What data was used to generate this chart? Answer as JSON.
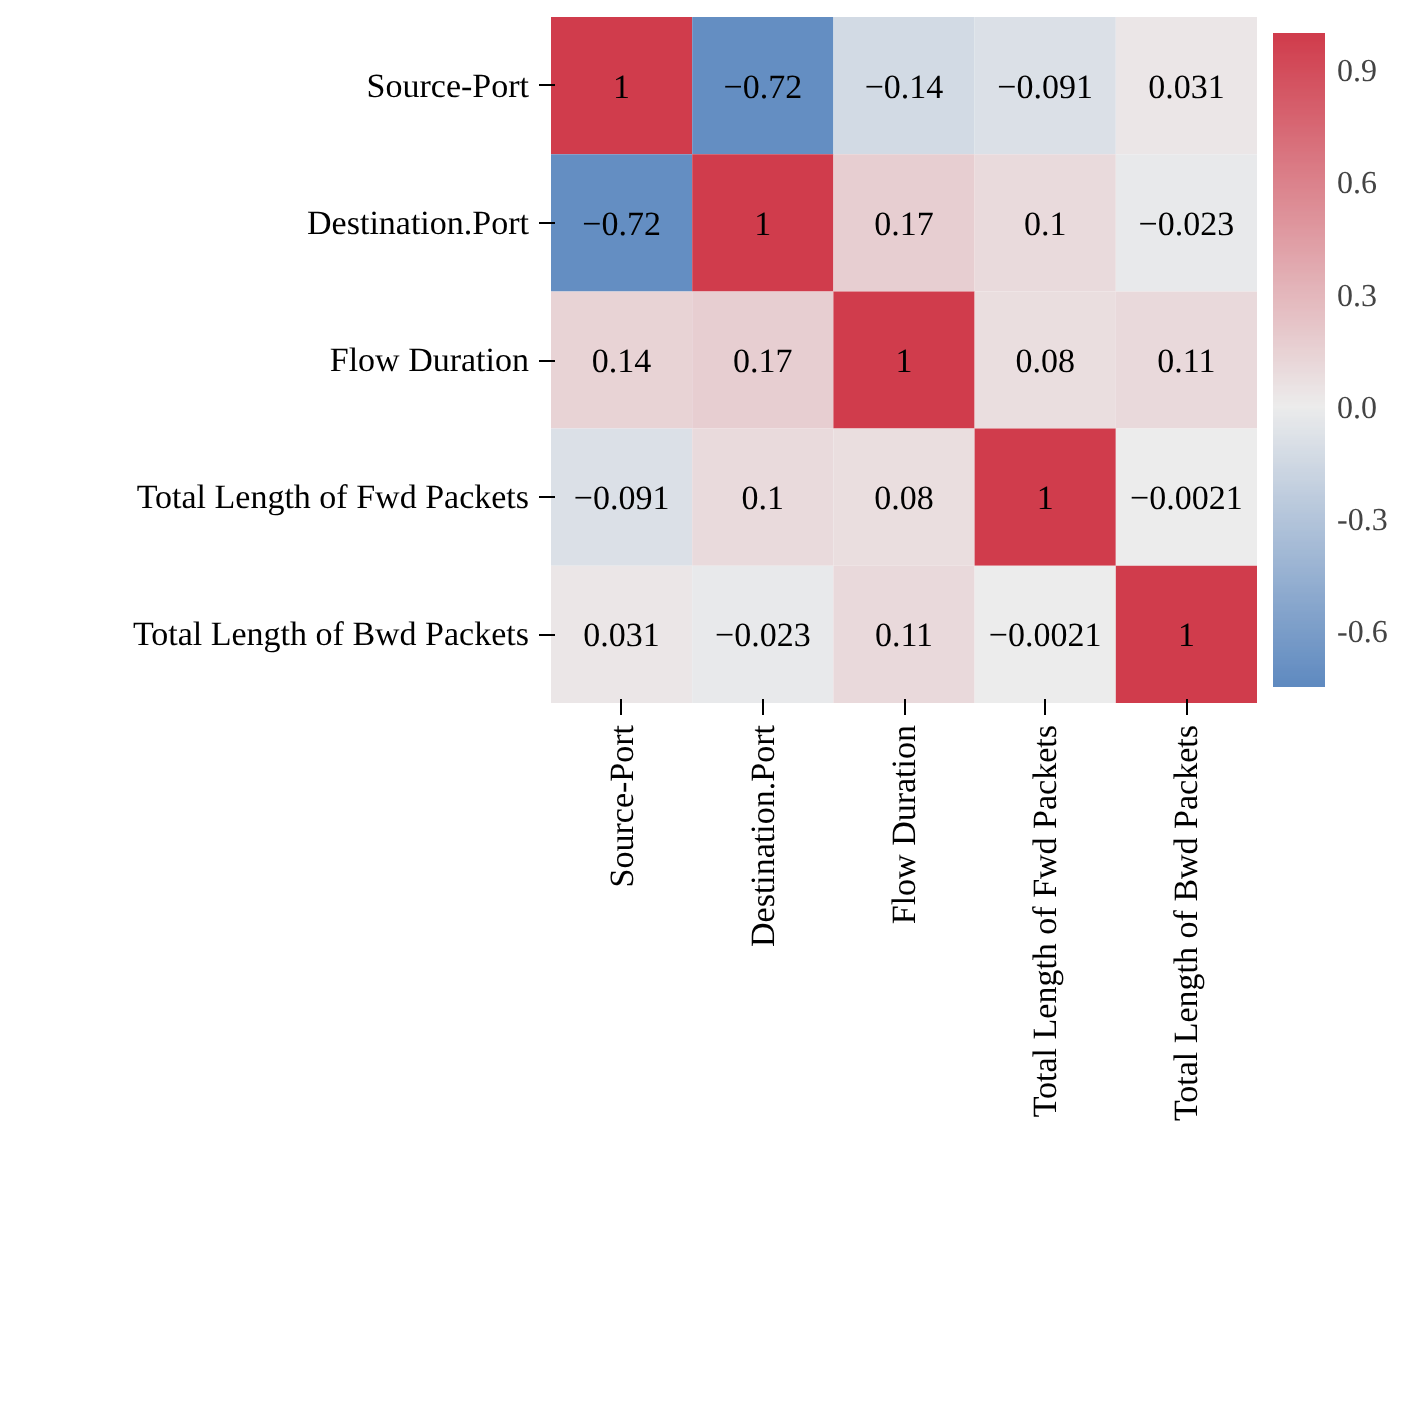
{
  "chart_data": {
    "type": "heatmap",
    "categories": [
      "Source-Port",
      "Destination.Port",
      "Flow Duration",
      "Total Length of Fwd Packets",
      "Total Length of Bwd Packets"
    ],
    "y_categories": [
      "Source-Port",
      "Destination.Port",
      "Flow Duration",
      "Total Length of Fwd Packets",
      "Total Length of Bwd Packets"
    ],
    "cells": [
      [
        1,
        -0.72,
        -0.14,
        -0.091,
        0.031
      ],
      [
        -0.72,
        1,
        0.17,
        0.1,
        -0.023
      ],
      [
        0.14,
        0.17,
        1,
        0.08,
        0.11
      ],
      [
        -0.091,
        0.1,
        0.08,
        1,
        -0.0021
      ],
      [
        0.031,
        -0.023,
        0.11,
        -0.0021,
        1
      ]
    ],
    "data_labels": true,
    "clim": [
      -0.75,
      1.0
    ],
    "cticks": [
      {
        "value": -0.6,
        "label": "-0.6"
      },
      {
        "value": -0.3,
        "label": "-0.3"
      },
      {
        "value": 0.0,
        "label": "0.0"
      },
      {
        "value": 0.3,
        "label": "0.3"
      },
      {
        "value": 0.6,
        "label": "0.6"
      },
      {
        "value": 0.9,
        "label": "0.9"
      }
    ]
  }
}
